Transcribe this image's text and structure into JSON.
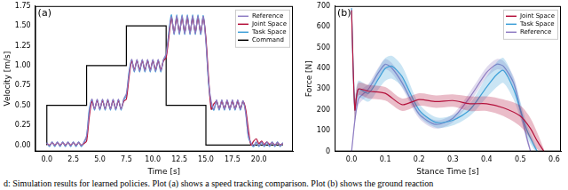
{
  "chart_data": [
    {
      "type": "line",
      "panel": "(a)",
      "x_label": "Time [s]",
      "y_label": "Velocity [m/s]",
      "xlim": [
        -1.1,
        23.2
      ],
      "ylim": [
        -0.08,
        1.75
      ],
      "xticks": [
        {
          "value": 0,
          "label": "0.0"
        },
        {
          "value": 2.5,
          "label": "2.5"
        },
        {
          "value": 5,
          "label": "5.0"
        },
        {
          "value": 7.5,
          "label": "7.5"
        },
        {
          "value": 10,
          "label": "10.0"
        },
        {
          "value": 12.5,
          "label": "12.5"
        },
        {
          "value": 15,
          "label": "15.0"
        },
        {
          "value": 17.5,
          "label": "17.5"
        },
        {
          "value": 20,
          "label": "20.0"
        }
      ],
      "yticks": [
        {
          "value": 0,
          "label": "0.00"
        },
        {
          "value": 0.25,
          "label": "0.25"
        },
        {
          "value": 0.5,
          "label": "0.50"
        },
        {
          "value": 0.75,
          "label": "0.75"
        },
        {
          "value": 1,
          "label": "1.00"
        },
        {
          "value": 1.25,
          "label": "1.25"
        },
        {
          "value": 1.5,
          "label": "1.50"
        },
        {
          "value": 1.75,
          "label": "1.75"
        }
      ],
      "grid": false,
      "legend": "upper right",
      "x": [
        0,
        0.25,
        0.5,
        0.75,
        1,
        1.25,
        1.5,
        1.75,
        2,
        2.25,
        2.5,
        2.75,
        3,
        3.25,
        3.5,
        3.75,
        4,
        4.25,
        4.5,
        4.75,
        5,
        5.25,
        5.5,
        5.75,
        6,
        6.25,
        6.5,
        6.75,
        7,
        7.25,
        7.5,
        7.75,
        8,
        8.25,
        8.5,
        8.75,
        9,
        9.25,
        9.5,
        9.75,
        10,
        10.25,
        10.5,
        10.75,
        11,
        11.25,
        11.5,
        11.75,
        12,
        12.25,
        12.5,
        12.75,
        13,
        13.25,
        13.5,
        13.75,
        14,
        14.25,
        14.5,
        14.75,
        15,
        15.25,
        15.5,
        15.75,
        16,
        16.25,
        16.5,
        16.75,
        17,
        17.25,
        17.5,
        17.75,
        18,
        18.25,
        18.5,
        18.75,
        19,
        19.25,
        19.5,
        19.75,
        20,
        20.25,
        20.5,
        20.75,
        21,
        21.25,
        21.5,
        21.75,
        22,
        22.25
      ],
      "series": [
        {
          "name": "Reference",
          "color": "#8e7cc3",
          "values": [
            0.03,
            -0.01,
            0.04,
            -0.01,
            0.04,
            -0.01,
            0.04,
            -0.01,
            0.04,
            -0.01,
            0.04,
            -0.01,
            0.04,
            -0.01,
            0.04,
            0.12,
            0.42,
            0.58,
            0.45,
            0.58,
            0.45,
            0.58,
            0.45,
            0.58,
            0.45,
            0.58,
            0.45,
            0.58,
            0.45,
            0.58,
            0.65,
            0.9,
            1.08,
            0.93,
            1.08,
            0.93,
            1.08,
            0.93,
            1.08,
            0.93,
            1.08,
            0.93,
            1.08,
            0.93,
            1.08,
            1.15,
            1.4,
            1.62,
            1.4,
            1.63,
            1.4,
            1.63,
            1.4,
            1.63,
            1.4,
            1.63,
            1.4,
            1.63,
            1.4,
            1.62,
            1.3,
            0.8,
            0.55,
            0.45,
            0.57,
            0.45,
            0.57,
            0.45,
            0.57,
            0.45,
            0.57,
            0.45,
            0.57,
            0.45,
            0.56,
            0.4,
            0.12,
            0.03,
            -0.01,
            0.04,
            -0.01,
            0.04,
            -0.01,
            0.04,
            -0.01,
            0.04,
            -0.01,
            0.04,
            -0.01,
            0.03
          ]
        },
        {
          "name": "Joint Space",
          "color": "#b5123c",
          "values": [
            0.02,
            0,
            0.03,
            0,
            0.03,
            0,
            0.03,
            0,
            0.03,
            0,
            0.03,
            0,
            0.03,
            0,
            0.02,
            0.05,
            0.35,
            0.55,
            0.46,
            0.56,
            0.46,
            0.56,
            0.46,
            0.56,
            0.46,
            0.56,
            0.46,
            0.56,
            0.46,
            0.55,
            0.58,
            0.85,
            1.06,
            0.95,
            1.06,
            0.95,
            1.06,
            0.95,
            1.06,
            0.95,
            1.06,
            0.95,
            1.06,
            0.95,
            1.06,
            1.1,
            1.35,
            1.6,
            1.42,
            1.6,
            1.42,
            1.6,
            1.42,
            1.6,
            1.42,
            1.6,
            1.42,
            1.6,
            1.42,
            1.6,
            1.35,
            0.85,
            0.45,
            0.52,
            0.55,
            0.46,
            0.55,
            0.46,
            0.55,
            0.46,
            0.55,
            0.46,
            0.55,
            0.46,
            0.55,
            0.45,
            0.2,
            0,
            0.05,
            0.08,
            0.02,
            0.05,
            0.01,
            0.04,
            0.01,
            0.03,
            0,
            0.03,
            0,
            0.02
          ]
        },
        {
          "name": "Task Space",
          "color": "#3fa0d8",
          "values": [
            0.03,
            -0.02,
            0.04,
            -0.02,
            0.04,
            -0.02,
            0.04,
            -0.02,
            0.04,
            -0.02,
            0.04,
            -0.02,
            0.04,
            -0.02,
            0.03,
            0.1,
            0.45,
            0.57,
            0.44,
            0.57,
            0.44,
            0.57,
            0.44,
            0.57,
            0.44,
            0.57,
            0.44,
            0.57,
            0.44,
            0.57,
            0.62,
            0.92,
            1.07,
            0.92,
            1.07,
            0.92,
            1.07,
            0.92,
            1.07,
            0.92,
            1.07,
            0.92,
            1.07,
            0.92,
            1.07,
            1.12,
            1.42,
            1.64,
            1.39,
            1.64,
            1.39,
            1.64,
            1.39,
            1.64,
            1.39,
            1.64,
            1.39,
            1.64,
            1.39,
            1.63,
            1.32,
            0.78,
            0.5,
            0.44,
            0.56,
            0.44,
            0.56,
            0.44,
            0.56,
            0.44,
            0.56,
            0.44,
            0.56,
            0.44,
            0.55,
            0.42,
            0.1,
            0.02,
            -0.02,
            0.04,
            -0.02,
            0.04,
            -0.02,
            0.04,
            -0.02,
            0.04,
            -0.02,
            0.04,
            -0.02,
            0.03
          ]
        },
        {
          "name": "Command",
          "color": "#000000",
          "line_style": "steps",
          "x": [
            0,
            3.75,
            7.5,
            11.25,
            15,
            18.75,
            22.25
          ],
          "values": [
            0,
            0.5,
            1.0,
            1.5,
            0.5,
            0,
            0
          ]
        }
      ]
    },
    {
      "type": "line",
      "panel": "(b)",
      "x_label": "Stance Time [s]",
      "y_label": "Force [N]",
      "xlim": [
        -0.05,
        0.62
      ],
      "ylim": [
        0,
        700
      ],
      "xticks": [
        {
          "value": 0,
          "label": "0.0"
        },
        {
          "value": 0.1,
          "label": "0.1"
        },
        {
          "value": 0.2,
          "label": "0.2"
        },
        {
          "value": 0.3,
          "label": "0.3"
        },
        {
          "value": 0.4,
          "label": "0.4"
        },
        {
          "value": 0.5,
          "label": "0.5"
        },
        {
          "value": 0.6,
          "label": "0.6"
        }
      ],
      "yticks": [
        0,
        100,
        200,
        300,
        400,
        500,
        600,
        700
      ],
      "grid": false,
      "legend": "upper right",
      "series": [
        {
          "name": "Joint Space",
          "color": "#b5123c",
          "x": [
            0,
            0.01,
            0.02,
            0.05,
            0.1,
            0.15,
            0.2,
            0.25,
            0.3,
            0.35,
            0.4,
            0.45,
            0.5,
            0.53,
            0.55,
            0.57
          ],
          "values": [
            680,
            200,
            300,
            290,
            280,
            225,
            250,
            240,
            245,
            230,
            230,
            210,
            170,
            110,
            50,
            0
          ],
          "lower": [
            600,
            150,
            270,
            255,
            245,
            195,
            220,
            210,
            215,
            195,
            195,
            170,
            120,
            60,
            10,
            0
          ],
          "upper": [
            700,
            250,
            330,
            320,
            310,
            255,
            280,
            270,
            275,
            265,
            265,
            250,
            220,
            160,
            90,
            10
          ]
        },
        {
          "name": "Task Space",
          "color": "#3fa0d8",
          "x": [
            0,
            0.01,
            0.02,
            0.05,
            0.08,
            0.1,
            0.12,
            0.15,
            0.2,
            0.25,
            0.3,
            0.35,
            0.4,
            0.43,
            0.45,
            0.48,
            0.5,
            0.52,
            0.54,
            0.55
          ],
          "values": [
            690,
            200,
            300,
            280,
            350,
            400,
            410,
            360,
            200,
            140,
            150,
            200,
            310,
            370,
            390,
            300,
            200,
            100,
            30,
            0
          ],
          "lower": [
            600,
            150,
            260,
            240,
            300,
            340,
            350,
            310,
            170,
            115,
            125,
            170,
            260,
            310,
            330,
            250,
            160,
            70,
            10,
            0
          ],
          "upper": [
            700,
            250,
            340,
            320,
            400,
            450,
            460,
            410,
            230,
            165,
            175,
            230,
            360,
            430,
            450,
            350,
            240,
            130,
            50,
            10
          ]
        },
        {
          "name": "Reference",
          "color": "#8e7cc3",
          "x": [
            0,
            0.02,
            0.05,
            0.08,
            0.1,
            0.12,
            0.15,
            0.2,
            0.25,
            0.3,
            0.35,
            0.4,
            0.43,
            0.45,
            0.48,
            0.5,
            0.52,
            0.53
          ],
          "values": [
            0,
            250,
            300,
            380,
            420,
            400,
            330,
            180,
            130,
            160,
            260,
            380,
            420,
            410,
            330,
            200,
            60,
            0
          ],
          "lower": [
            0,
            220,
            275,
            355,
            395,
            375,
            305,
            160,
            110,
            140,
            235,
            355,
            395,
            385,
            300,
            170,
            40,
            0
          ],
          "upper": [
            20,
            280,
            325,
            405,
            445,
            425,
            355,
            200,
            150,
            180,
            285,
            405,
            445,
            435,
            360,
            230,
            80,
            20
          ]
        }
      ]
    }
  ],
  "caption": "d: Simulation results for learned policies. Plot (a) shows a speed tracking comparison. Plot (b) shows the ground reaction"
}
